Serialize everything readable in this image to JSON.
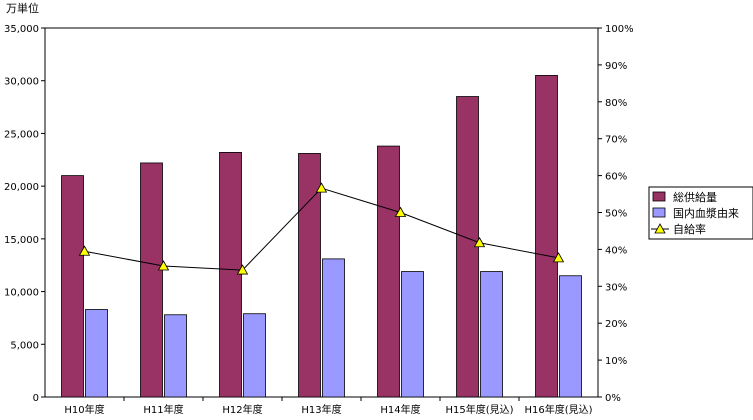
{
  "chart_data": {
    "type": "bar",
    "categories": [
      "H10年度",
      "H11年度",
      "H12年度",
      "H13年度",
      "H14年度",
      "H15年度(見込)",
      "H16年度(見込)"
    ],
    "series": [
      {
        "name": "総供給量",
        "type": "bar",
        "axis": "left",
        "color": "#993366",
        "values": [
          21000,
          22200,
          23200,
          23100,
          23800,
          28500,
          30500
        ]
      },
      {
        "name": "国内血漿由来",
        "type": "bar",
        "axis": "left",
        "color": "#9999ff",
        "values": [
          8300,
          7800,
          7900,
          13100,
          11900,
          11900,
          11500
        ]
      },
      {
        "name": "自給率",
        "type": "line",
        "axis": "right",
        "color": "#000000",
        "marker_color": "#ffff00",
        "values": [
          39.5,
          35.5,
          34.4,
          56.6,
          50.0,
          41.8,
          37.7
        ]
      }
    ],
    "y_left": {
      "label": "万単位",
      "min": 0,
      "max": 35000,
      "step": 5000,
      "ticks": [
        "0",
        "5,000",
        "10,000",
        "15,000",
        "20,000",
        "25,000",
        "30,000",
        "35,000"
      ]
    },
    "y_right": {
      "min": 0,
      "max": 100,
      "step": 10,
      "ticks": [
        "0%",
        "10%",
        "20%",
        "30%",
        "40%",
        "50%",
        "60%",
        "70%",
        "80%",
        "90%",
        "100%"
      ]
    },
    "grid": false,
    "legend": "right",
    "title": ""
  }
}
